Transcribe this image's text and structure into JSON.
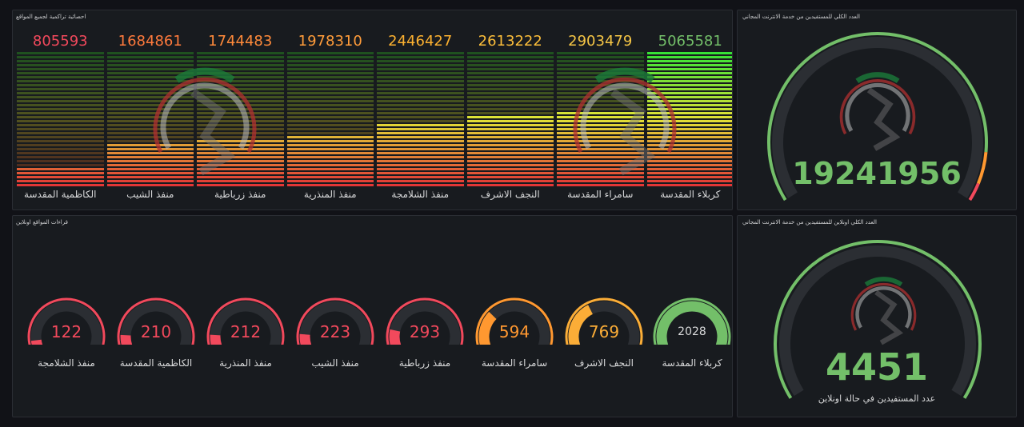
{
  "cumulative_panel": {
    "title": "احصائية تراكمية لجميع المواقع",
    "items": [
      {
        "label": "الكاظمية المقدسة",
        "value": "805593"
      },
      {
        "label": "منفذ الشيب",
        "value": "1684861"
      },
      {
        "label": "منفذ زرباطية",
        "value": "1744483"
      },
      {
        "label": "منفذ المنذرية",
        "value": "1978310"
      },
      {
        "label": "منفذ الشلامجة",
        "value": "2446427"
      },
      {
        "label": "النجف الاشرف",
        "value": "2613222"
      },
      {
        "label": "سامراء المقدسة",
        "value": "2903479"
      },
      {
        "label": "كربلاء المقدسة",
        "value": "5065581"
      }
    ],
    "max_value": 5065581,
    "value_colors": [
      "#f2495c",
      "#ff7a3c",
      "#ff8a3a",
      "#ff9c3a",
      "#fcb130",
      "#fcbe3a",
      "#f5c545",
      "#73bf69"
    ]
  },
  "total_panel": {
    "title": "العدد الكلي للمستفيدين من خدمة الانترنت المجاني",
    "value": "19241956",
    "gauge_fraction": 0.89,
    "color": "#73bf69"
  },
  "online_sites_panel": {
    "title": "قراءات المواقع اونلاين",
    "gauge_max": 2028,
    "items": [
      {
        "label": "منفذ الشلامجة",
        "value": "122",
        "color": "#f2495c"
      },
      {
        "label": "الكاظمية المقدسة",
        "value": "210",
        "color": "#f2495c"
      },
      {
        "label": "منفذ المنذرية",
        "value": "212",
        "color": "#f2495c"
      },
      {
        "label": "منفذ الشيب",
        "value": "223",
        "color": "#f2495c"
      },
      {
        "label": "منفذ زرباطية",
        "value": "293",
        "color": "#f2495c"
      },
      {
        "label": "سامراء المقدسة",
        "value": "594",
        "color": "#ff9830"
      },
      {
        "label": "النجف الاشرف",
        "value": "769",
        "color": "#fbad37"
      },
      {
        "label": "كربلاء المقدسة",
        "value": "2028",
        "color": "#73bf69"
      }
    ]
  },
  "online_total_panel": {
    "title": "العدد الكلي اونلاين للمستفيدين من خدمة الانترنت المجاني",
    "value": "4451",
    "subtitle": "عدد المستفيدين في حالة اونلاين",
    "color": "#73bf69"
  }
}
